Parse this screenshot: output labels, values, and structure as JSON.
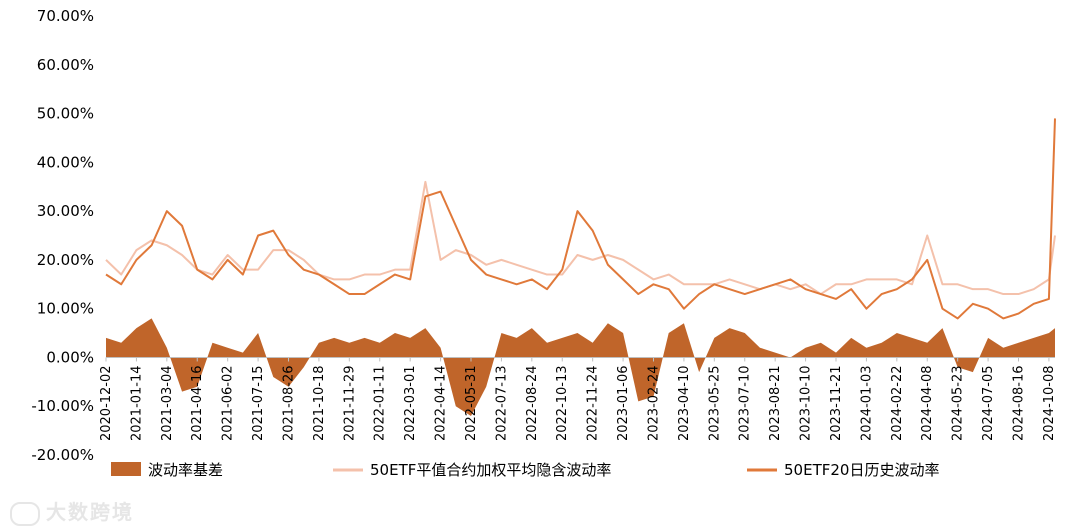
{
  "chart_data": {
    "type": "line",
    "title": "",
    "y_axis": {
      "min": -20,
      "max": 70,
      "step": 10,
      "tick_labels": [
        "-20.00%",
        "-10.00%",
        "0.00%",
        "10.00%",
        "20.00%",
        "30.00%",
        "40.00%",
        "50.00%",
        "60.00%",
        "70.00%"
      ]
    },
    "x_tick_labels": [
      "2020-12-02",
      "2021-01-14",
      "2021-03-04",
      "2021-04-16",
      "2021-06-02",
      "2021-07-15",
      "2021-08-26",
      "2021-10-18",
      "2021-11-29",
      "2022-01-11",
      "2022-03-01",
      "2022-04-14",
      "2022-05-31",
      "2022-07-13",
      "2022-08-24",
      "2022-10-13",
      "2022-11-24",
      "2023-01-06",
      "2023-02-24",
      "2023-04-10",
      "2023-05-25",
      "2023-07-10",
      "2023-08-21",
      "2023-10-10",
      "2023-11-21",
      "2024-01-03",
      "2024-02-22",
      "2024-04-08",
      "2024-05-23",
      "2024-07-05",
      "2024-08-16",
      "2024-10-08"
    ],
    "series": [
      {
        "name": "波动率基差",
        "kind": "area",
        "color": "#c0652a",
        "x": [
          0,
          0.5,
          1,
          1.5,
          2,
          2.5,
          3,
          3.5,
          4,
          4.5,
          5,
          5.5,
          6,
          6.5,
          7,
          7.5,
          8,
          8.5,
          9,
          9.5,
          10,
          10.5,
          11,
          11.5,
          12,
          12.5,
          13,
          13.5,
          14,
          14.5,
          15,
          15.5,
          16,
          16.5,
          17,
          17.5,
          18,
          18.5,
          19,
          19.5,
          20,
          20.5,
          21,
          21.5,
          22,
          22.5,
          23,
          23.5,
          24,
          24.5,
          25,
          25.5,
          26,
          26.5,
          27,
          27.5,
          28,
          28.5,
          29,
          29.5,
          30,
          30.5,
          31,
          31.2
        ],
        "values": [
          4,
          3,
          6,
          8,
          2,
          -7,
          -6,
          3,
          2,
          1,
          5,
          -4,
          -6,
          -2,
          3,
          4,
          3,
          4,
          3,
          5,
          4,
          6,
          2,
          -10,
          -12,
          -6,
          5,
          4,
          6,
          3,
          4,
          5,
          3,
          7,
          5,
          -9,
          -8,
          5,
          7,
          -3,
          4,
          6,
          5,
          2,
          1,
          0,
          2,
          3,
          1,
          4,
          2,
          3,
          5,
          4,
          3,
          6,
          -2,
          -3,
          4,
          2,
          3,
          4,
          5,
          6
        ]
      },
      {
        "name": "50ETF平值合约加权平均隐含波动率",
        "kind": "line",
        "color": "#f4c1ab",
        "x": [
          0,
          0.5,
          1,
          1.5,
          2,
          2.5,
          3,
          3.5,
          4,
          4.5,
          5,
          5.5,
          6,
          6.5,
          7,
          7.5,
          8,
          8.5,
          9,
          9.5,
          10,
          10.5,
          11,
          11.5,
          12,
          12.5,
          13,
          13.5,
          14,
          14.5,
          15,
          15.5,
          16,
          16.5,
          17,
          17.5,
          18,
          18.5,
          19,
          19.5,
          20,
          20.5,
          21,
          21.5,
          22,
          22.5,
          23,
          23.5,
          24,
          24.5,
          25,
          25.5,
          26,
          26.5,
          27,
          27.5,
          28,
          28.5,
          29,
          29.5,
          30,
          30.5,
          31,
          31.2
        ],
        "values": [
          20,
          17,
          22,
          24,
          23,
          21,
          18,
          17,
          21,
          18,
          18,
          22,
          22,
          20,
          17,
          16,
          16,
          17,
          17,
          18,
          18,
          36,
          20,
          22,
          21,
          19,
          20,
          19,
          18,
          17,
          17,
          21,
          20,
          21,
          20,
          18,
          16,
          17,
          15,
          15,
          15,
          16,
          15,
          14,
          15,
          14,
          15,
          13,
          15,
          15,
          16,
          16,
          16,
          15,
          25,
          15,
          15,
          14,
          14,
          13,
          13,
          14,
          16,
          25
        ]
      },
      {
        "name": "50ETF20日历史波动率",
        "kind": "line",
        "color": "#e0793a",
        "x": [
          0,
          0.5,
          1,
          1.5,
          2,
          2.5,
          3,
          3.5,
          4,
          4.5,
          5,
          5.5,
          6,
          6.5,
          7,
          7.5,
          8,
          8.5,
          9,
          9.5,
          10,
          10.5,
          11,
          11.5,
          12,
          12.5,
          13,
          13.5,
          14,
          14.5,
          15,
          15.5,
          16,
          16.5,
          17,
          17.5,
          18,
          18.5,
          19,
          19.5,
          20,
          20.5,
          21,
          21.5,
          22,
          22.5,
          23,
          23.5,
          24,
          24.5,
          25,
          25.5,
          26,
          26.5,
          27,
          27.5,
          28,
          28.5,
          29,
          29.5,
          30,
          30.5,
          31,
          31.2
        ],
        "values": [
          17,
          15,
          20,
          23,
          30,
          27,
          18,
          16,
          20,
          17,
          25,
          26,
          21,
          18,
          17,
          15,
          13,
          13,
          15,
          17,
          16,
          33,
          34,
          27,
          20,
          17,
          16,
          15,
          16,
          14,
          18,
          30,
          26,
          19,
          16,
          13,
          15,
          14,
          10,
          13,
          15,
          14,
          13,
          14,
          15,
          16,
          14,
          13,
          12,
          14,
          10,
          13,
          14,
          16,
          20,
          10,
          8,
          11,
          10,
          8,
          9,
          11,
          12,
          49
        ]
      }
    ],
    "legend_position": "bottom",
    "grid": false
  },
  "watermark_text": "大数跨境",
  "colors": {
    "area": "#c0652a",
    "implied": "#f4c1ab",
    "historical": "#e0793a",
    "axis": "#bfbfbf"
  }
}
